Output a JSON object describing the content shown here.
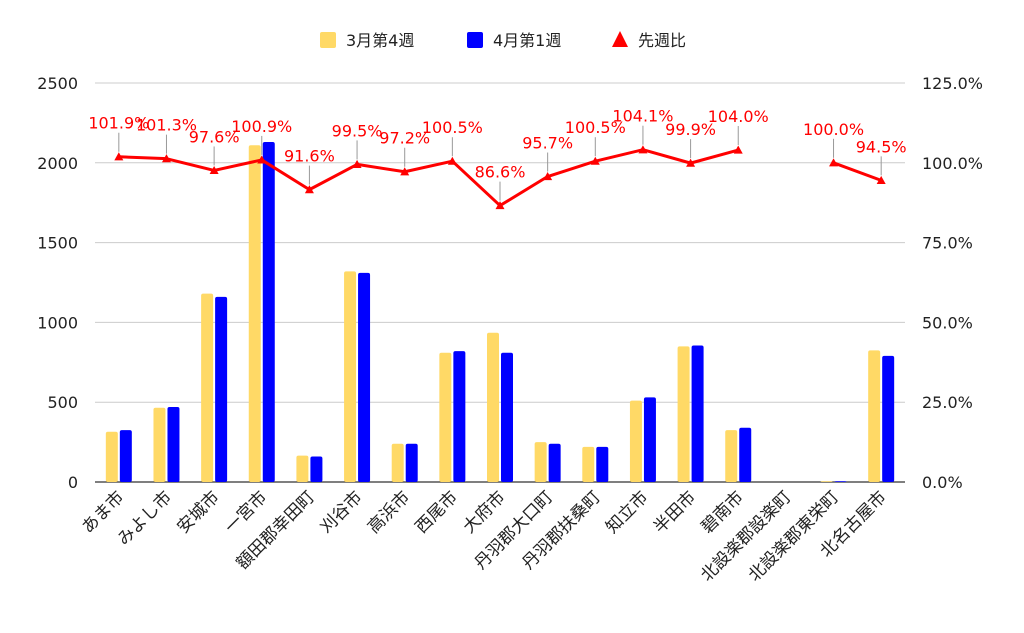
{
  "chart_data": {
    "type": "bar",
    "categories": [
      "あま市",
      "みよし市",
      "安城市",
      "一宮市",
      "額田郡幸田町",
      "刈谷市",
      "高浜市",
      "西尾市",
      "大府市",
      "丹羽郡大口町",
      "丹羽郡扶桑町",
      "知立市",
      "半田市",
      "碧南市",
      "北設楽郡設楽町",
      "北設楽郡東栄町",
      "北名古屋市"
    ],
    "series": [
      {
        "name": "3月第4週",
        "type": "bar",
        "axis": "left",
        "color": "#FFD966",
        "values": [
          315,
          465,
          1180,
          2110,
          165,
          1320,
          240,
          810,
          935,
          250,
          220,
          510,
          850,
          325,
          0,
          5,
          825
        ]
      },
      {
        "name": "4月第1週",
        "type": "bar",
        "axis": "left",
        "color": "#0000FF",
        "values": [
          325,
          470,
          1160,
          2130,
          160,
          1310,
          240,
          820,
          810,
          240,
          220,
          530,
          855,
          340,
          0,
          5,
          790
        ]
      },
      {
        "name": "先週比",
        "type": "line",
        "axis": "right",
        "color": "#FF0000",
        "values": [
          101.9,
          101.3,
          97.6,
          100.9,
          91.6,
          99.5,
          97.2,
          100.5,
          86.6,
          95.7,
          100.5,
          104.1,
          99.9,
          104.0,
          null,
          100.0,
          94.5
        ],
        "labels": [
          "101.9%",
          "101.3%",
          "97.6%",
          "100.9%",
          "91.6%",
          "99.5%",
          "97.2%",
          "100.5%",
          "86.6%",
          "95.7%",
          "100.5%",
          "104.1%",
          "99.9%",
          "104.0%",
          "",
          "100.0%",
          "94.5%"
        ]
      }
    ],
    "y_left": {
      "min": 0,
      "max": 2500,
      "ticks": [
        "0",
        "500",
        "1000",
        "1500",
        "2000",
        "2500"
      ]
    },
    "y_right": {
      "min": 0,
      "max": 125,
      "ticks": [
        "0.0%",
        "25.0%",
        "50.0%",
        "75.0%",
        "100.0%",
        "125.0%"
      ]
    },
    "grid": true,
    "legend_position": "top-center"
  }
}
